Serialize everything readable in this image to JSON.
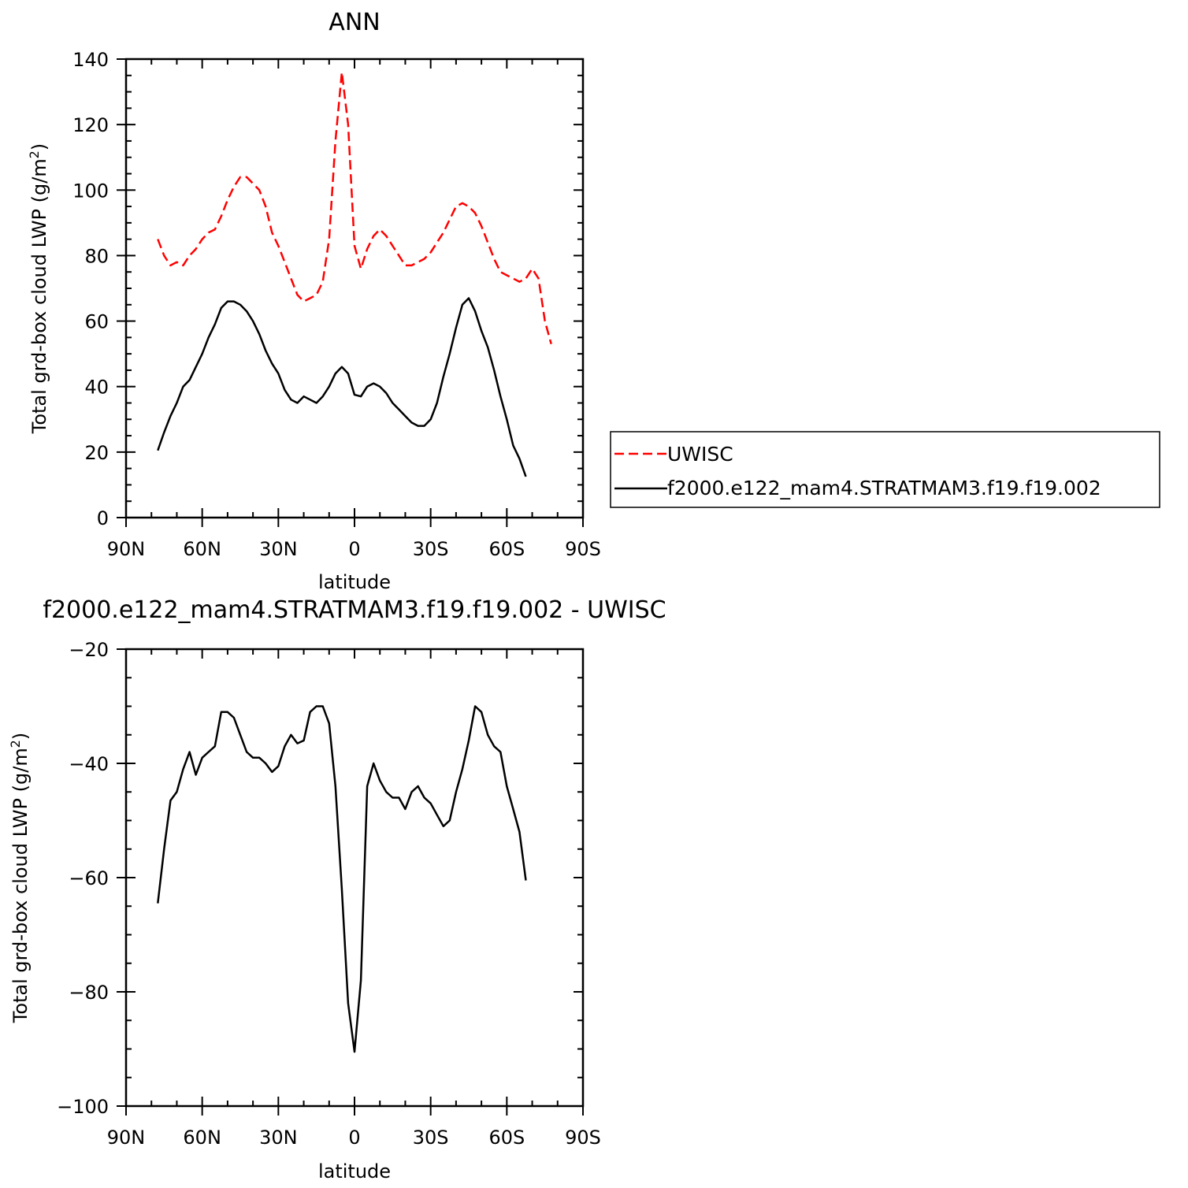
{
  "chart_data": [
    {
      "type": "line",
      "title": "ANN",
      "xlabel": "latitude",
      "ylabel": "Total grd-box cloud LWP (g/m",
      "ylabel_sup": "2",
      "ylabel_end": ")",
      "xlim": [
        90,
        -90
      ],
      "ylim": [
        0,
        140
      ],
      "x_ticks": [
        90,
        60,
        30,
        0,
        -30,
        -60,
        -90
      ],
      "x_tick_labels": [
        "90N",
        "60N",
        "30N",
        "0",
        "30S",
        "60S",
        "90S"
      ],
      "y_ticks": [
        0,
        20,
        40,
        60,
        80,
        100,
        120,
        140
      ],
      "y_tick_labels": [
        "0",
        "20",
        "40",
        "60",
        "80",
        "100",
        "120",
        "140"
      ],
      "legend_position": "right",
      "series": [
        {
          "name": "UWISC",
          "color": "#ff0000",
          "dash": "dashed",
          "x": [
            77.5,
            75,
            72.5,
            70,
            67.5,
            65,
            62.5,
            60,
            57.5,
            55,
            52.5,
            50,
            47.5,
            45,
            42.5,
            40,
            37.5,
            35,
            32.5,
            30,
            27.5,
            25,
            22.5,
            20,
            17.5,
            15,
            12.5,
            10,
            7.5,
            5,
            2.5,
            0,
            -2.5,
            -5,
            -7.5,
            -10,
            -12.5,
            -15,
            -17.5,
            -20,
            -22.5,
            -25,
            -27.5,
            -30,
            -32.5,
            -35,
            -37.5,
            -40,
            -42.5,
            -45,
            -47.5,
            -50,
            -52.5,
            -55,
            -57.5,
            -60,
            -62.5,
            -65,
            -67.5,
            -70,
            -72.5,
            -75,
            -77.5
          ],
          "y": [
            85,
            80,
            77,
            78,
            77,
            80,
            82,
            85,
            87,
            88,
            92,
            97,
            101,
            104,
            104,
            102,
            100,
            95,
            87,
            83,
            78,
            73,
            68,
            66,
            67,
            68,
            72,
            85,
            115,
            136,
            120,
            83,
            76,
            82,
            86,
            88,
            86,
            83,
            80,
            77,
            77,
            78,
            79,
            81,
            84,
            87,
            91,
            95,
            96,
            95,
            93,
            89,
            84,
            79,
            75,
            74,
            73,
            72,
            73,
            76,
            73,
            60,
            53
          ]
        },
        {
          "name": "f2000.e122_mam4.STRATMAM3.f19.f19.002",
          "color": "#000000",
          "dash": "solid",
          "x": [
            77.5,
            75,
            72.5,
            70,
            67.5,
            65,
            62.5,
            60,
            57.5,
            55,
            52.5,
            50,
            47.5,
            45,
            42.5,
            40,
            37.5,
            35,
            32.5,
            30,
            27.5,
            25,
            22.5,
            20,
            17.5,
            15,
            12.5,
            10,
            7.5,
            5,
            2.5,
            0,
            -2.5,
            -5,
            -7.5,
            -10,
            -12.5,
            -15,
            -17.5,
            -20,
            -22.5,
            -25,
            -27.5,
            -30,
            -32.5,
            -35,
            -37.5,
            -40,
            -42.5,
            -45,
            -47.5,
            -50,
            -52.5,
            -55,
            -57.5,
            -60,
            -62.5,
            -65,
            -67.5
          ],
          "y": [
            20.5,
            26,
            31,
            35,
            40,
            42,
            46,
            50,
            55,
            59,
            64,
            66,
            66,
            65,
            63,
            60,
            56,
            51,
            47,
            44,
            39,
            36,
            35,
            37,
            36,
            35,
            37,
            40,
            44,
            46,
            44,
            37.5,
            37,
            40,
            41,
            40,
            38,
            35,
            33,
            31,
            29,
            28,
            28,
            30,
            35,
            43,
            50,
            58,
            65,
            67,
            63,
            57,
            52,
            45,
            37,
            30,
            22,
            18,
            12.5
          ]
        }
      ]
    },
    {
      "type": "line",
      "title": "f2000.e122_mam4.STRATMAM3.f19.f19.002 - UWISC",
      "xlabel": "latitude",
      "ylabel": "Total grd-box cloud LWP (g/m",
      "ylabel_sup": "2",
      "ylabel_end": ")",
      "xlim": [
        90,
        -90
      ],
      "ylim": [
        -100,
        -20
      ],
      "x_ticks": [
        90,
        60,
        30,
        0,
        -30,
        -60,
        -90
      ],
      "x_tick_labels": [
        "90N",
        "60N",
        "30N",
        "0",
        "30S",
        "60S",
        "90S"
      ],
      "y_ticks": [
        -100,
        -80,
        -60,
        -40,
        -20
      ],
      "y_tick_labels": [
        "−100",
        "−80",
        "−60",
        "−40",
        "−20"
      ],
      "series": [
        {
          "color": "#000000",
          "dash": "solid",
          "x": [
            77.5,
            75,
            72.5,
            70,
            67.5,
            65,
            62.5,
            60,
            57.5,
            55,
            52.5,
            50,
            47.5,
            45,
            42.5,
            40,
            37.5,
            35,
            32.5,
            30,
            27.5,
            25,
            22.5,
            20,
            17.5,
            15,
            12.5,
            10,
            7.5,
            5,
            2.5,
            0,
            -2.5,
            -5,
            -7.5,
            -10,
            -12.5,
            -15,
            -17.5,
            -20,
            -22.5,
            -25,
            -27.5,
            -30,
            -32.5,
            -35,
            -37.5,
            -40,
            -42.5,
            -45,
            -47.5,
            -50,
            -52.5,
            -55,
            -57.5,
            -60,
            -62.5,
            -65,
            -67.5
          ],
          "y": [
            -64.5,
            -55,
            -46.5,
            -45,
            -41,
            -38,
            -42,
            -39,
            -38,
            -37,
            -31,
            -31,
            -32,
            -35,
            -38,
            -39,
            -39,
            -40,
            -41.5,
            -40.5,
            -37,
            -35,
            -36.5,
            -36,
            -31,
            -30,
            -30,
            -33,
            -44,
            -62,
            -82,
            -90.5,
            -78,
            -44,
            -40,
            -43,
            -45,
            -46,
            -46,
            -48,
            -45,
            -44,
            -46,
            -47,
            -49,
            -51,
            -50,
            -45,
            -41,
            -36,
            -30,
            -31,
            -35,
            -37,
            -38,
            -44,
            -48,
            -52,
            -60.5
          ]
        }
      ]
    }
  ]
}
